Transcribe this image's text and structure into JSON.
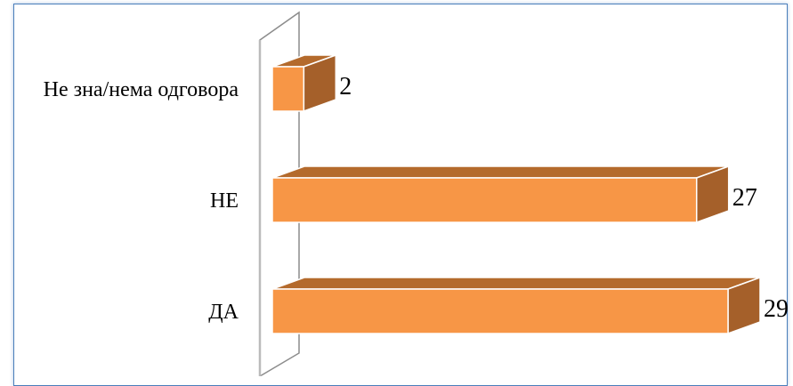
{
  "chart_data": {
    "type": "bar",
    "orientation": "horizontal",
    "style": "3d",
    "categories": [
      "Не зна/нема одговора",
      "НЕ",
      "ДА"
    ],
    "values": [
      2,
      27,
      29
    ],
    "data_labels": [
      "2",
      "27",
      "29"
    ],
    "xlim": [
      0,
      29
    ],
    "grid": false,
    "legend": "none",
    "colors": {
      "bar_front": "#f79646",
      "bar_top": "#b46a2c",
      "bar_side": "#a5602a",
      "bar_edge": "#ffffff",
      "wall_stroke": "#8c8c8c",
      "frame_border": "#4a7ebb"
    }
  }
}
